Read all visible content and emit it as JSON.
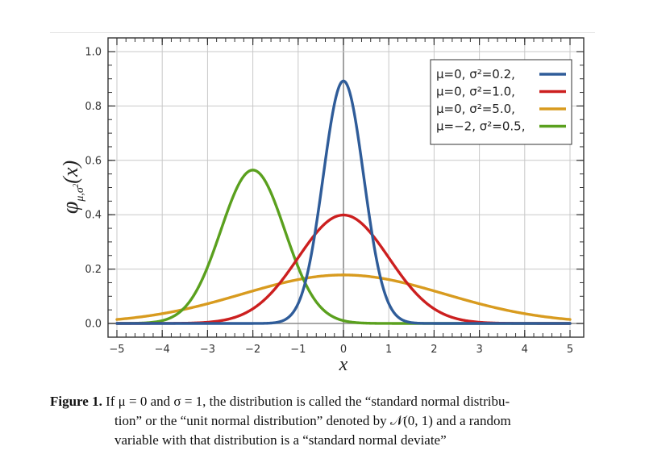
{
  "chart_data": {
    "type": "line",
    "ylabel_parts": {
      "phi": "φ",
      "sub_mu": "μ",
      "sub_comma": ",",
      "sub_sigma": "σ",
      "sub_sq": "2",
      "arg": "(x)"
    },
    "xlabel": "x",
    "xlim": [
      -5,
      5
    ],
    "ylim": [
      0.0,
      1.0
    ],
    "x_ticks": [
      "−5",
      "−4",
      "−3",
      "−2",
      "−1",
      "0",
      "1",
      "2",
      "3",
      "4",
      "5"
    ],
    "y_ticks": [
      "0.0",
      "0.2",
      "0.4",
      "0.6",
      "0.8",
      "1.0"
    ],
    "grid": true,
    "legend_position": "top-right",
    "series": [
      {
        "name": "μ=0,   σ²=0.2,",
        "mu": 0,
        "variance": 0.2,
        "color": "#2f5c99",
        "peak": 0.892
      },
      {
        "name": "μ=0,   σ²=1.0,",
        "mu": 0,
        "variance": 1.0,
        "color": "#cc1f1f",
        "peak": 0.399
      },
      {
        "name": "μ=0,   σ²=5.0,",
        "mu": 0,
        "variance": 5.0,
        "color": "#d89b1f",
        "peak": 0.178
      },
      {
        "name": "μ=−2, σ²=0.5,",
        "mu": -2,
        "variance": 0.5,
        "color": "#5aa01e",
        "peak": 0.564
      }
    ]
  },
  "caption": {
    "label": "Figure 1.",
    "line1": "If μ = 0 and σ = 1, the distribution is called the “standard normal distribu-",
    "line2": "tion” or the “unit normal distribution” denoted by 𝒩(0, 1) and a random",
    "line3": "variable with that distribution is a “standard normal deviate”"
  }
}
